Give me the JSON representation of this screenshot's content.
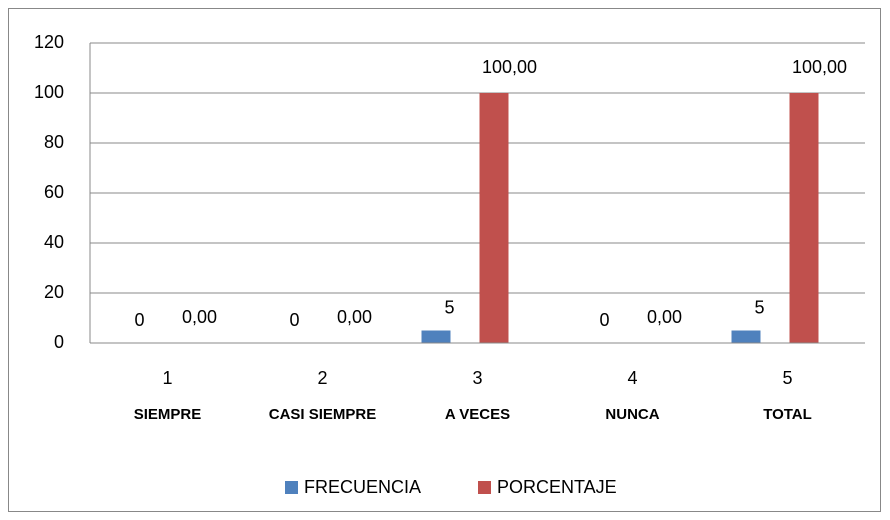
{
  "chart_data": {
    "type": "bar",
    "categories": [
      [
        "1",
        "SIEMPRE"
      ],
      [
        "2",
        "CASI SIEMPRE"
      ],
      [
        "3",
        "A VECES"
      ],
      [
        "4",
        "NUNCA"
      ],
      [
        "5",
        "TOTAL"
      ]
    ],
    "series": [
      {
        "name": "FRECUENCIA",
        "color": "#4f81bd",
        "values": [
          0,
          0,
          5,
          0,
          5
        ]
      },
      {
        "name": "PORCENTAJE",
        "color": "#c0504d",
        "values": [
          0,
          0,
          100,
          0,
          100
        ],
        "value_labels": [
          "0,00",
          "0,00",
          "100,00",
          "0,00",
          "100,00"
        ]
      }
    ],
    "ylim": [
      0,
      120
    ],
    "yticks": [
      0,
      20,
      40,
      60,
      80,
      100,
      120
    ],
    "grid": true,
    "legend": "bottom"
  }
}
